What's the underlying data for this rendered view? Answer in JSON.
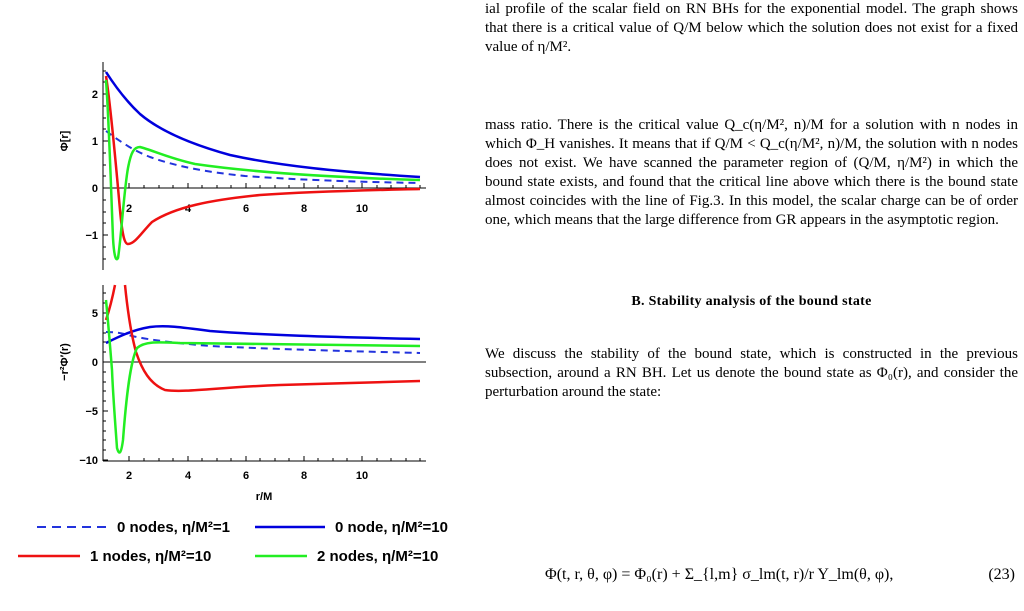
{
  "figure": {
    "top_panel": {
      "ylabel": "Φ[r]",
      "xticks": [
        "2",
        "4",
        "6",
        "8",
        "10"
      ],
      "yticks": [
        "2",
        "1",
        "0",
        "−1"
      ]
    },
    "bottom_panel": {
      "ylabel": "−r²Φ′(r)",
      "xticks": [
        "2",
        "4",
        "6",
        "8",
        "10"
      ],
      "yticks": [
        "5",
        "0",
        "−5",
        "−10"
      ],
      "xlabel": "r/M"
    },
    "legend": [
      {
        "label": "0 nodes, η/M²=1",
        "color": "#2233dd",
        "style": "dashed"
      },
      {
        "label": "0 node, η/M²=10",
        "color": "#0000dd",
        "style": "solid"
      },
      {
        "label": "1 nodes, η/M²=10",
        "color": "#ee1111",
        "style": "solid"
      },
      {
        "label": "2 nodes, η/M²=10",
        "color": "#22ee22",
        "style": "solid"
      }
    ]
  },
  "text": {
    "caption_end": "ial profile of the scalar field on RN BHs for the exponential model. The graph shows that there is a critical value of Q/M below which the solution does not exist for a fixed value of η/M².",
    "para1": "mass ratio. There is the critical value Q_c(η/M², n)/M for a solution with n nodes in which Φ_H vanishes. It means that if Q/M < Q_c(η/M², n)/M, the solution with n nodes does not exist. We have scanned the parameter region of (Q/M, η/M²) in which the bound state exists, and found that the critical line above which there is the bound state almost coincides with the line of Fig.3. In this model, the scalar charge can be of order one, which means that the large difference from GR appears in the asymptotic region.",
    "section_title": "B.   Stability analysis of the bound state",
    "para2": "We discuss the stability of the bound state, which is constructed in the previous subsection, around a RN BH. Let us denote the bound state as Φ₀(r), and consider the perturbation around the state:",
    "equation": "Φ(t, r, θ, φ) = Φ₀(r) + Σ_{l,m} σ_lm(t, r)/r Y_lm(θ, φ),",
    "equation_number": "(23)"
  }
}
